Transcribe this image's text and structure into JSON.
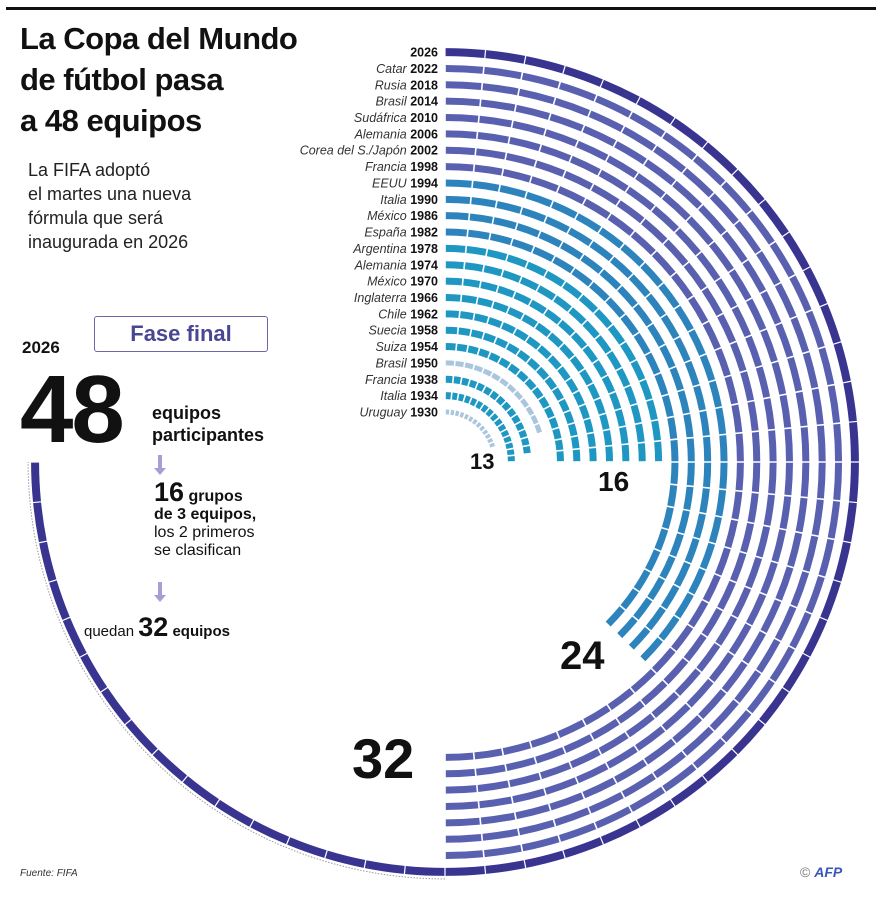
{
  "header": {
    "title_lines": [
      "La Copa del Mundo",
      "de fútbol pasa",
      "a 48 equipos"
    ],
    "subtitle_lines": [
      "La FIFA adoptó",
      "el martes una nueva",
      "fórmula que será",
      "inaugurada en 2026"
    ]
  },
  "panel": {
    "fase_final": "Fase final",
    "year": "2026",
    "teams_big": "48",
    "teams_text_1": "equipos",
    "teams_text_2": "participantes",
    "groups_number": "16",
    "groups_word": "grupos",
    "groups_line2": "de 3 equipos,",
    "groups_line3": "los 2 primeros",
    "groups_line4": "se clasifican",
    "quedan": "quedan",
    "quedan_number": "32",
    "quedan_word": "equipos"
  },
  "footer": {
    "source": "Fuente: FIFA",
    "copyright": "©",
    "agency": "AFP"
  },
  "colors": {
    "cyan": "#1e98c2",
    "cyan_pale": "#a9c6de",
    "blue": "#2d84bd",
    "violet": "#5a60b0",
    "indigo": "#3a3491",
    "dotted": "#9a9a9a"
  },
  "chart_data": {
    "type": "radial-bar",
    "title": "La Copa del Mundo de fútbol pasa a 48 equipos",
    "value_label": "equipos participantes",
    "scale_max_teams": 48,
    "scale_max_degrees": 270,
    "milestone_labels": [
      "13",
      "16",
      "24",
      "32"
    ],
    "editions": [
      {
        "host": "Uruguay",
        "year": "1930",
        "teams": 13,
        "group": "cyan_pale"
      },
      {
        "host": "Italia",
        "year": "1934",
        "teams": 16,
        "group": "cyan"
      },
      {
        "host": "Francia",
        "year": "1938",
        "teams": 15,
        "group": "cyan"
      },
      {
        "host": "Brasil",
        "year": "1950",
        "teams": 13,
        "group": "cyan_pale"
      },
      {
        "host": "Suiza",
        "year": "1954",
        "teams": 16,
        "group": "cyan"
      },
      {
        "host": "Suecia",
        "year": "1958",
        "teams": 16,
        "group": "cyan"
      },
      {
        "host": "Chile",
        "year": "1962",
        "teams": 16,
        "group": "cyan"
      },
      {
        "host": "Inglaterra",
        "year": "1966",
        "teams": 16,
        "group": "cyan"
      },
      {
        "host": "México",
        "year": "1970",
        "teams": 16,
        "group": "cyan"
      },
      {
        "host": "Alemania",
        "year": "1974",
        "teams": 16,
        "group": "cyan"
      },
      {
        "host": "Argentina",
        "year": "1978",
        "teams": 16,
        "group": "cyan"
      },
      {
        "host": "España",
        "year": "1982",
        "teams": 24,
        "group": "blue"
      },
      {
        "host": "México",
        "year": "1986",
        "teams": 24,
        "group": "blue"
      },
      {
        "host": "Italia",
        "year": "1990",
        "teams": 24,
        "group": "blue"
      },
      {
        "host": "EEUU",
        "year": "1994",
        "teams": 24,
        "group": "blue"
      },
      {
        "host": "Francia",
        "year": "1998",
        "teams": 32,
        "group": "violet"
      },
      {
        "host": "Corea del S./Japón",
        "year": "2002",
        "teams": 32,
        "group": "violet"
      },
      {
        "host": "Alemania",
        "year": "2006",
        "teams": 32,
        "group": "violet"
      },
      {
        "host": "Sudáfrica",
        "year": "2010",
        "teams": 32,
        "group": "violet"
      },
      {
        "host": "Brasil",
        "year": "2014",
        "teams": 32,
        "group": "violet"
      },
      {
        "host": "Rusia",
        "year": "2018",
        "teams": 32,
        "group": "violet"
      },
      {
        "host": "Catar",
        "year": "2022",
        "teams": 32,
        "group": "violet"
      },
      {
        "host": "",
        "year": "2026",
        "teams": 48,
        "group": "indigo"
      }
    ]
  }
}
